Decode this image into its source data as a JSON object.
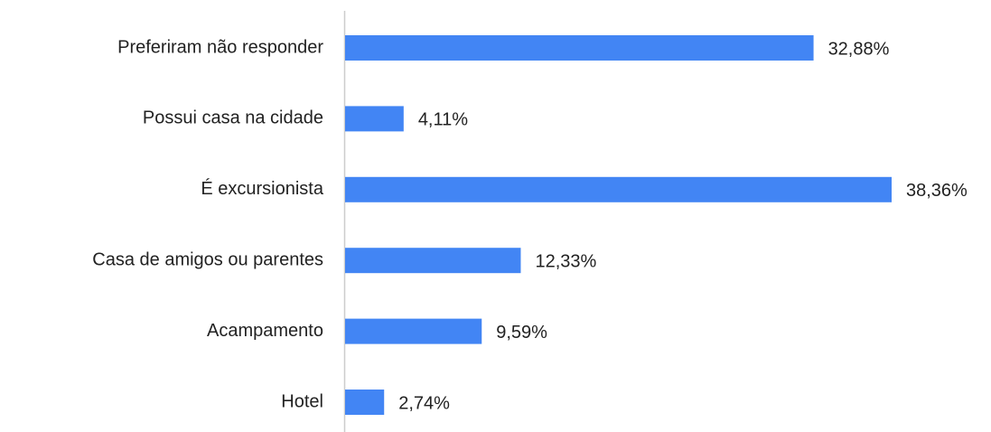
{
  "chart_data": {
    "type": "bar",
    "orientation": "horizontal",
    "categories": [
      "Preferiram não responder",
      "Possui casa na cidade",
      "É excursionista",
      "Casa de amigos ou parentes",
      "Acampamento",
      "Hotel"
    ],
    "values": [
      32.88,
      4.11,
      38.36,
      12.33,
      9.59,
      2.74
    ],
    "value_labels": [
      "32,88%",
      "4,11%",
      "38,36%",
      "12,33%",
      "9,59%",
      "2,74%"
    ],
    "color": "#4285f4"
  }
}
